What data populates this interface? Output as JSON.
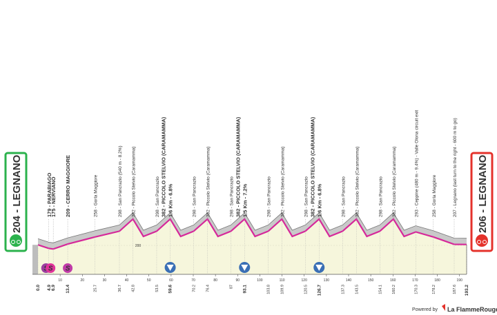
{
  "chart_data": {
    "type": "area",
    "start": {
      "label": "204 - LEGNANO",
      "km": 0,
      "km_label": "0.0",
      "color": "#2bb24c"
    },
    "finish": {
      "label": "206 - LEGNANO",
      "km": 193.2,
      "color": "#e4322b"
    },
    "x": [
      0,
      4.9,
      6.9,
      13.4,
      25.7,
      36.7,
      42.8,
      47.5,
      53.5,
      59.6,
      64.3,
      70.2,
      76.4,
      81.1,
      87.0,
      93.1,
      97.8,
      103.8,
      109.9,
      114.6,
      120.5,
      126.7,
      131.4,
      137.3,
      143.5,
      148.2,
      154.1,
      160.2,
      165,
      170.3,
      178.2,
      187.6,
      193.2
    ],
    "values": [
      204,
      179,
      175,
      209,
      258,
      298,
      382,
      262,
      298,
      382,
      262,
      298,
      382,
      262,
      298,
      382,
      262,
      298,
      382,
      262,
      298,
      382,
      262,
      298,
      382,
      262,
      298,
      382,
      262,
      293,
      258,
      207,
      206
    ],
    "color": "#d6289a",
    "xlim": [
      0,
      193.2
    ],
    "ylim": [
      0,
      1000
    ],
    "xticks": [
      10,
      20,
      30,
      40,
      50,
      60,
      70,
      80,
      90,
      100,
      110,
      120,
      130,
      140,
      150,
      160,
      170,
      180,
      190
    ],
    "yticks": [
      200
    ],
    "waypoints": [
      {
        "km": 4.9,
        "label": "179 - PARABIAGO",
        "major": true,
        "icon": "sprint"
      },
      {
        "km": 6.9,
        "label": "175 - NERVIANO",
        "major": true,
        "icon": "sprint"
      },
      {
        "km": 13.4,
        "label": "209 - CERRO MAGGIORE",
        "major": true,
        "icon": "sprint"
      },
      {
        "km": 25.7,
        "label": "258 - Gorla Maggiore"
      },
      {
        "km": 36.7,
        "label": "298 - San Pancrazio (540 m - 8.2%)"
      },
      {
        "km": 42.8,
        "label": "382 - Piccolo Stelvio (Caramamma)"
      },
      {
        "km": 53.5,
        "label": "298 - San Pancrazio"
      },
      {
        "km": 59.6,
        "label": "382 - PICCOLO STELVIO (CARAMAMMA)",
        "detail": "1.6 Km - 6.8%",
        "major": true,
        "icon": "kom"
      },
      {
        "km": 70.2,
        "label": "298 - San Pancrazio"
      },
      {
        "km": 76.4,
        "label": "382 - Piccolo Stelvio (Caramamma)"
      },
      {
        "km": 87.0,
        "label": "298 - San Pancrazio"
      },
      {
        "km": 93.1,
        "label": "382 - PICCOLO STELVIO (CARAMAMMA)",
        "detail": "1.5 Km - 7.2%",
        "major": true,
        "icon": "kom"
      },
      {
        "km": 103.8,
        "label": "298 - San Pancrazio"
      },
      {
        "km": 109.9,
        "label": "382 - Piccolo Stelvio (Caramamma)"
      },
      {
        "km": 120.5,
        "label": "298 - San Pancrazio"
      },
      {
        "km": 126.7,
        "label": "382 - PICCOLO STELVIO (CARAMAMMA)",
        "detail": "1.6 Km - 6.8%",
        "major": true,
        "icon": "kom"
      },
      {
        "km": 137.3,
        "label": "298 - San Pancrazio"
      },
      {
        "km": 143.5,
        "label": "382 - Piccolo Stelvio (Caramamma)"
      },
      {
        "km": 154.1,
        "label": "298 - San Pancrazio"
      },
      {
        "km": 160.2,
        "label": "382 - Piccolo Stelvio (Caramamma)"
      },
      {
        "km": 170.3,
        "label": "293 - Ceppine (480 m - 9.4%) - Valle Olona circuit exit"
      },
      {
        "km": 178.2,
        "label": "258 - Gorla Maggiore"
      },
      {
        "km": 187.6,
        "label": "207 - Legnano (last turn to the right - 600 m to go)"
      }
    ],
    "icon_text": "S",
    "footer": {
      "prefix": "Powered by",
      "brand": "La FlammeRouge"
    }
  }
}
